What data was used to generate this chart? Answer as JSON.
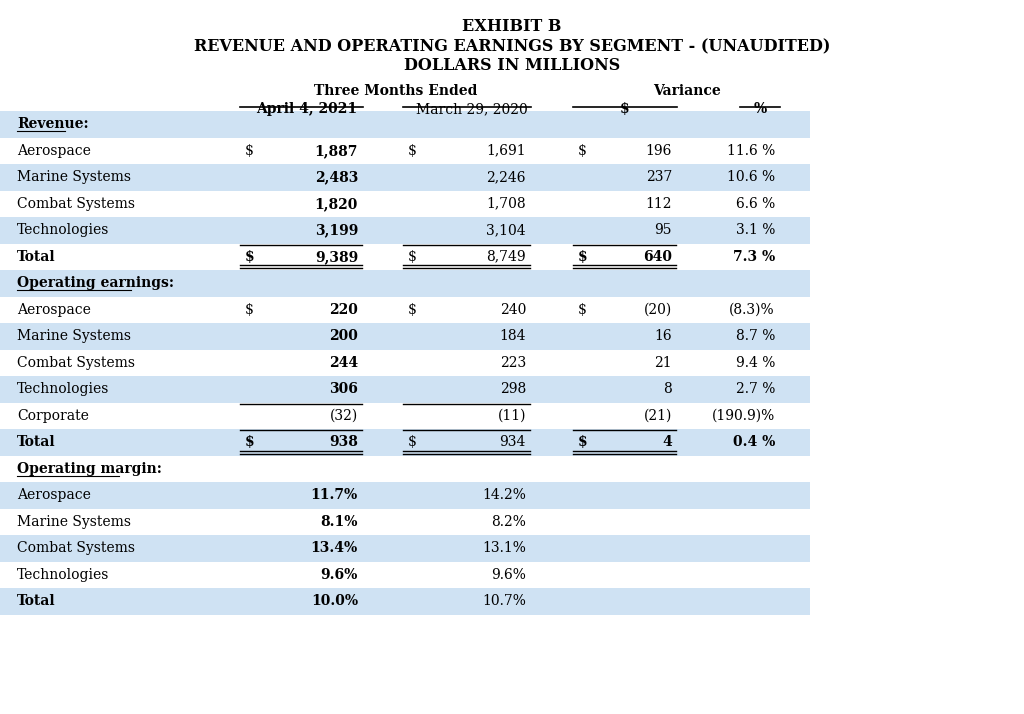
{
  "title1": "EXHIBIT B",
  "title2": "REVENUE AND OPERATING EARNINGS BY SEGMENT - (UNAUDITED)",
  "title3": "DOLLARS IN MILLIONS",
  "col_headers_group1": "Three Months Ended",
  "col_headers_group2": "Variance",
  "col_header_c2": "April 4, 2021",
  "col_header_c3": "March 29, 2020",
  "col_header_c4": "$",
  "col_header_c5": "%",
  "bg_color_light": "#cfe2f3",
  "bg_color_white": "#ffffff",
  "rows": [
    {
      "label": "Revenue:",
      "c2": "",
      "c3": "",
      "c4": "",
      "c5": "",
      "section_header": true,
      "bold": true,
      "underline": true,
      "bg": "light"
    },
    {
      "label": "Aerospace",
      "dollar_c1": true,
      "c2": "1,887",
      "dollar_c3": true,
      "c3": "1,691",
      "dollar_c4": true,
      "c4": "196",
      "c5": "11.6 %",
      "bold_c2": true,
      "bg": "white"
    },
    {
      "label": "Marine Systems",
      "c2": "2,483",
      "c3": "2,246",
      "c4": "237",
      "c5": "10.6 %",
      "bold_c2": true,
      "bg": "light"
    },
    {
      "label": "Combat Systems",
      "c2": "1,820",
      "c3": "1,708",
      "c4": "112",
      "c5": "6.6 %",
      "bold_c2": true,
      "bg": "white"
    },
    {
      "label": "Technologies",
      "c2": "3,199",
      "c3": "3,104",
      "c4": "95",
      "c5": "3.1 %",
      "bold_c2": true,
      "bg": "light"
    },
    {
      "label": "Total",
      "dollar_c1": true,
      "c2": "9,389",
      "dollar_c3": true,
      "c3": "8,749",
      "dollar_c4": true,
      "c4": "640",
      "c5": "7.3 %",
      "bold": true,
      "bg": "white",
      "border_above": true,
      "border_below_double": true
    },
    {
      "label": "Operating earnings:",
      "c2": "",
      "c3": "",
      "c4": "",
      "c5": "",
      "section_header": true,
      "bold": true,
      "underline": true,
      "bg": "light"
    },
    {
      "label": "Aerospace",
      "dollar_c1": true,
      "c2": "220",
      "dollar_c3": true,
      "c3": "240",
      "dollar_c4": true,
      "c4": "(20)",
      "c5": "(8.3)%",
      "bold_c2": true,
      "bg": "white"
    },
    {
      "label": "Marine Systems",
      "c2": "200",
      "c3": "184",
      "c4": "16",
      "c5": "8.7 %",
      "bold_c2": true,
      "bg": "light"
    },
    {
      "label": "Combat Systems",
      "c2": "244",
      "c3": "223",
      "c4": "21",
      "c5": "9.4 %",
      "bold_c2": true,
      "bg": "white"
    },
    {
      "label": "Technologies",
      "c2": "306",
      "c3": "298",
      "c4": "8",
      "c5": "2.7 %",
      "bold_c2": true,
      "bg": "light"
    },
    {
      "label": "Corporate",
      "c2": "(32)",
      "c3": "(11)",
      "c4": "(21)",
      "c5": "(190.9)%",
      "bg": "white",
      "border_above_c2c3": true
    },
    {
      "label": "Total",
      "dollar_c1": true,
      "c2": "938",
      "dollar_c3": true,
      "c3": "934",
      "dollar_c4": true,
      "c4": "4",
      "c5": "0.4 %",
      "bold": true,
      "bg": "light",
      "border_above": true,
      "border_below_double": true
    },
    {
      "label": "Operating margin:",
      "c2": "",
      "c3": "",
      "c4": "",
      "c5": "",
      "section_header": true,
      "bold": true,
      "underline": true,
      "bg": "white"
    },
    {
      "label": "Aerospace",
      "c2": "11.7%",
      "c3": "14.2%",
      "c4": "",
      "c5": "",
      "bold_c2": true,
      "bg": "light"
    },
    {
      "label": "Marine Systems",
      "c2": "8.1%",
      "c3": "8.2%",
      "c4": "",
      "c5": "",
      "bold_c2": true,
      "bg": "white"
    },
    {
      "label": "Combat Systems",
      "c2": "13.4%",
      "c3": "13.1%",
      "c4": "",
      "c5": "",
      "bold_c2": true,
      "bg": "light"
    },
    {
      "label": "Technologies",
      "c2": "9.6%",
      "c3": "9.6%",
      "c4": "",
      "c5": "",
      "bold_c2": true,
      "bg": "white"
    },
    {
      "label": "Total",
      "c2": "10.0%",
      "c3": "10.7%",
      "c4": "",
      "c5": "",
      "bold": true,
      "bg": "light"
    }
  ],
  "font_size": 10.0,
  "title_font_size": 11.5
}
